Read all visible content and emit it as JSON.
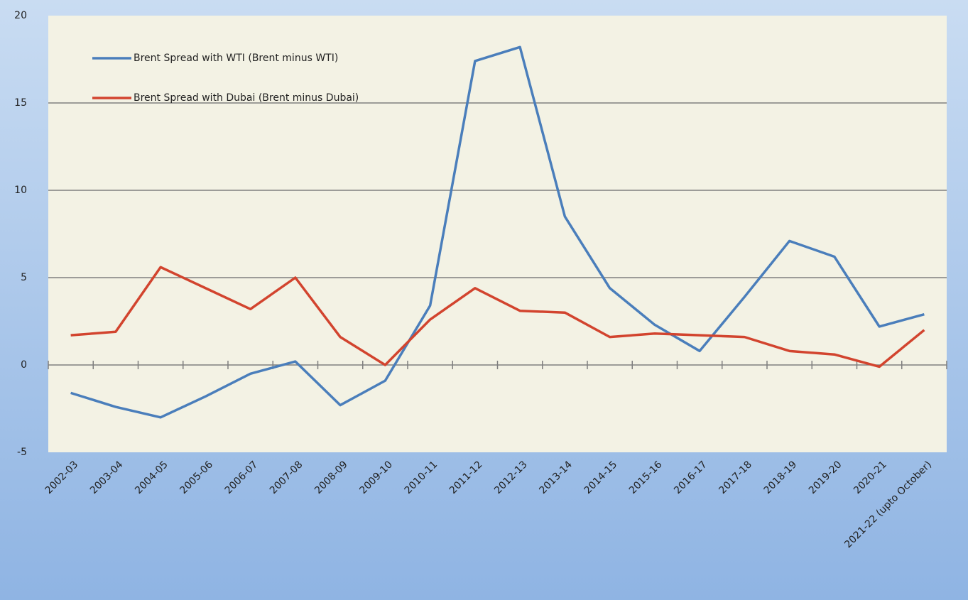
{
  "chart_data": {
    "type": "line",
    "categories": [
      "2002-03",
      "2003-04",
      "2004-05",
      "2005-06",
      "2006-07",
      "2007-08",
      "2008-09",
      "2009-10",
      "2010-11",
      "2011-12",
      "2012-13",
      "2013-14",
      "2014-15",
      "2015-16",
      "2016-17",
      "2017-18",
      "2018-19",
      "2019-20",
      "2020-21",
      "2021-22 (upto October)"
    ],
    "series": [
      {
        "name": "Brent Spread with WTI (Brent minus WTI)",
        "color": "#4a7ebb",
        "values": [
          -1.6,
          -2.4,
          -3.0,
          -1.8,
          -0.5,
          0.2,
          -2.3,
          -0.9,
          3.4,
          17.4,
          18.2,
          8.5,
          4.4,
          2.3,
          0.8,
          3.9,
          7.1,
          6.2,
          2.2,
          2.9
        ]
      },
      {
        "name": "Brent Spread with Dubai (Brent minus Dubai)",
        "color": "#d2442e",
        "values": [
          1.7,
          1.9,
          5.6,
          4.4,
          3.2,
          5.0,
          1.6,
          0.0,
          2.6,
          4.4,
          3.1,
          3.0,
          1.6,
          1.8,
          1.7,
          1.6,
          0.8,
          0.6,
          -0.1,
          2.0
        ]
      }
    ],
    "ylim": [
      -5,
      20
    ],
    "yticks": [
      -5,
      0,
      5,
      10,
      15,
      20
    ],
    "grid": true,
    "legend": "upper left"
  }
}
